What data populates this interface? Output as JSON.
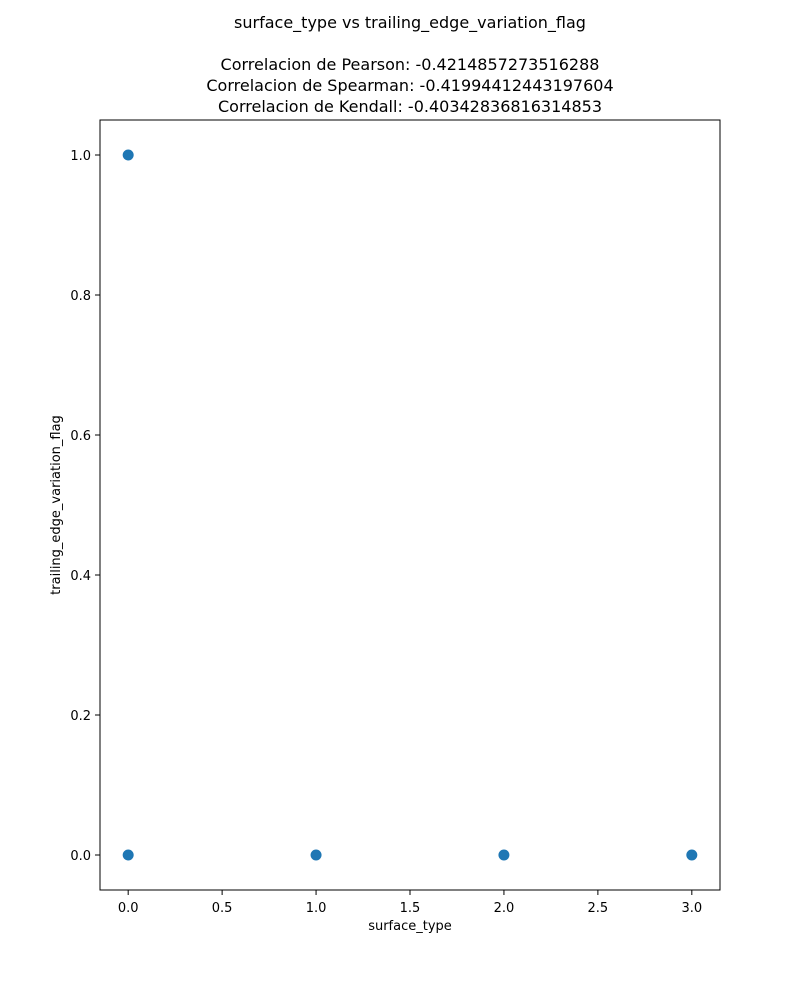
{
  "chart_data": {
    "type": "scatter",
    "title": "surface_type vs trailing_edge_variation_flag",
    "subtitle_lines": [
      "Correlacion de Pearson: -0.4214857273516288",
      "Correlacion de Spearman: -0.41994412443197604",
      "Correlacion de Kendall: -0.40342836816314853"
    ],
    "xlabel": "surface_type",
    "ylabel": "trailing_edge_variation_flag",
    "xlim": [
      -0.15,
      3.15
    ],
    "ylim": [
      -0.05,
      1.05
    ],
    "xticks": [
      0.0,
      0.5,
      1.0,
      1.5,
      2.0,
      2.5,
      3.0
    ],
    "xtick_labels": [
      "0.0",
      "0.5",
      "1.0",
      "1.5",
      "2.0",
      "2.5",
      "3.0"
    ],
    "yticks": [
      0.0,
      0.2,
      0.4,
      0.6,
      0.8,
      1.0
    ],
    "ytick_labels": [
      "0.0",
      "0.2",
      "0.4",
      "0.6",
      "0.8",
      "1.0"
    ],
    "grid": false,
    "marker_color": "#1f77b4",
    "series": [
      {
        "x": [
          0,
          0,
          1,
          2,
          3
        ],
        "y": [
          1,
          0,
          0,
          0,
          0
        ]
      }
    ]
  }
}
